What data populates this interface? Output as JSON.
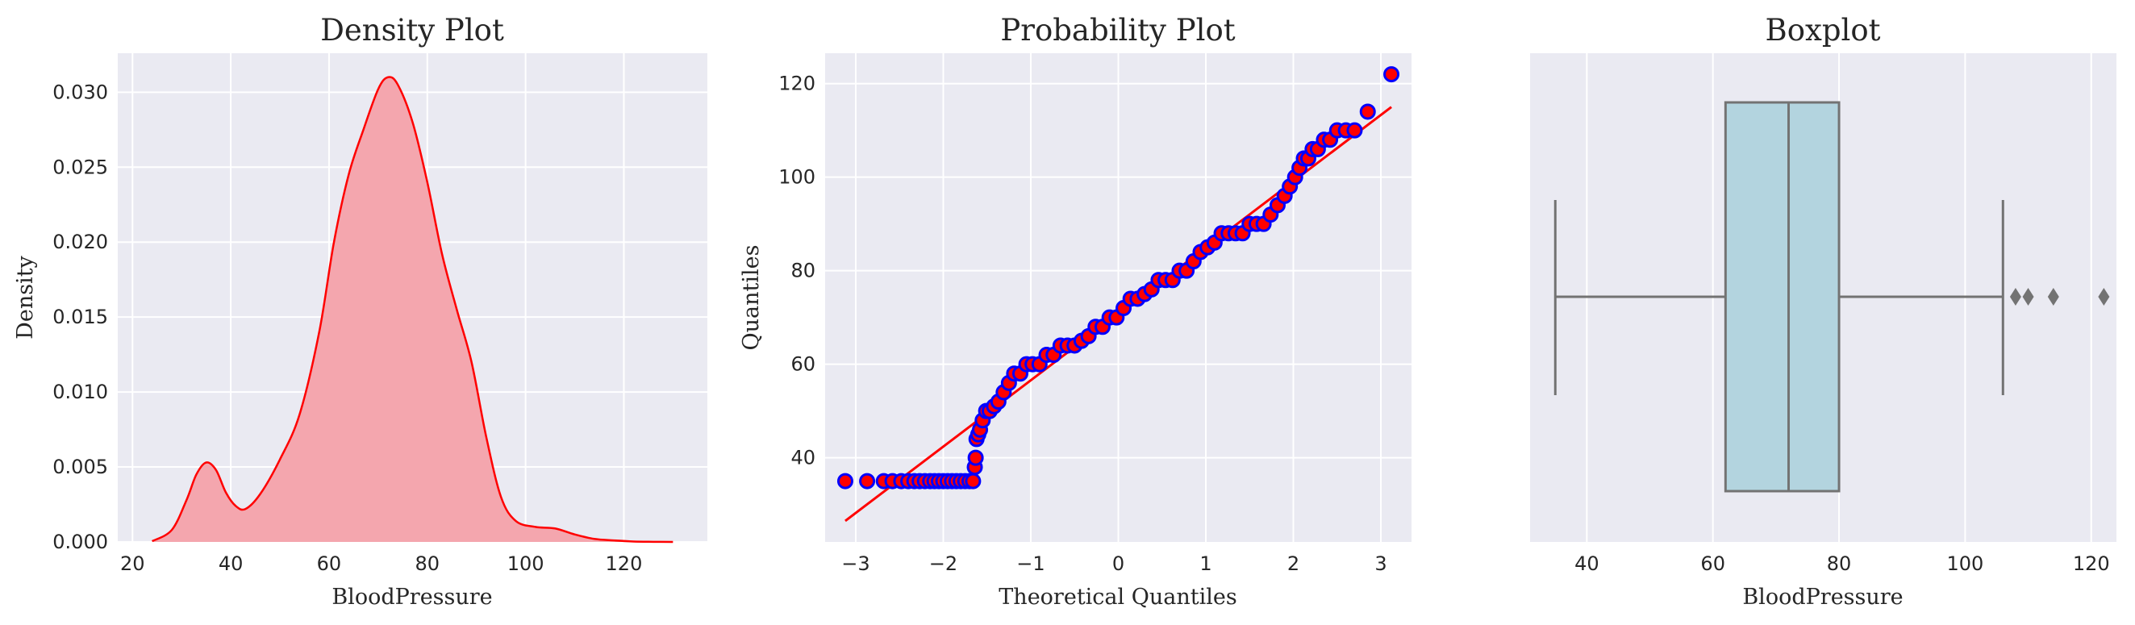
{
  "chart_data": [
    {
      "type": "area",
      "title": "Density Plot",
      "xlabel": "BloodPressure",
      "ylabel": "Density",
      "xlim": [
        17,
        137
      ],
      "ylim": [
        0,
        0.0326
      ],
      "xticks": [
        20,
        40,
        60,
        80,
        100,
        120
      ],
      "yticks": [
        0.0,
        0.005,
        0.01,
        0.015,
        0.02,
        0.025,
        0.03
      ],
      "ytick_labels": [
        "0.000",
        "0.005",
        "0.010",
        "0.015",
        "0.020",
        "0.025",
        "0.030"
      ],
      "grid": true,
      "colors": {
        "line": "#ff0000",
        "fill": "#f4a6ae"
      },
      "x": [
        24,
        28,
        31,
        33,
        35,
        37,
        39,
        41,
        43,
        46,
        50,
        54,
        58,
        61,
        64,
        67,
        70,
        72,
        74,
        77,
        80,
        83,
        86,
        89,
        92,
        95,
        98,
        102,
        106,
        110,
        114,
        118,
        122,
        126,
        130
      ],
      "y": [
        5e-05,
        0.0008,
        0.0028,
        0.0045,
        0.0053,
        0.0048,
        0.0033,
        0.0024,
        0.0022,
        0.0032,
        0.0055,
        0.0085,
        0.014,
        0.02,
        0.0245,
        0.0275,
        0.0302,
        0.031,
        0.0305,
        0.028,
        0.024,
        0.0192,
        0.0155,
        0.012,
        0.007,
        0.003,
        0.0014,
        0.001,
        0.0009,
        0.0005,
        0.0002,
        0.0001,
        3e-05,
        1e-05,
        0.0
      ]
    },
    {
      "type": "scatter",
      "title": "Probability Plot",
      "xlabel": "Theoretical Quantiles",
      "ylabel": "Quantiles",
      "xlim": [
        -3.35,
        3.35
      ],
      "ylim": [
        22,
        126.5
      ],
      "xticks": [
        -3,
        -2,
        -1,
        0,
        1,
        2,
        3
      ],
      "xtick_labels": [
        "−3",
        "−2",
        "−1",
        "0",
        "1",
        "2",
        "3"
      ],
      "yticks": [
        40,
        60,
        80,
        100,
        120
      ],
      "grid": true,
      "colors": {
        "marker_edge": "#0000ff",
        "marker_face": "#ff0000",
        "fit_line": "#ff0000"
      },
      "fit_line": {
        "x": [
          -3.12,
          3.12
        ],
        "y": [
          26.5,
          115
        ]
      },
      "x": [
        -3.12,
        -2.87,
        -2.68,
        -2.58,
        -2.48,
        -2.4,
        -2.33,
        -2.27,
        -2.21,
        -2.15,
        -2.1,
        -2.05,
        -2.0,
        -1.95,
        -1.9,
        -1.85,
        -1.8,
        -1.75,
        -1.7,
        -1.66,
        -1.64,
        -1.63,
        -1.62,
        -1.6,
        -1.58,
        -1.55,
        -1.51,
        -1.47,
        -1.42,
        -1.37,
        -1.31,
        -1.25,
        -1.19,
        -1.12,
        -1.05,
        -0.98,
        -0.9,
        -0.82,
        -0.74,
        -0.66,
        -0.58,
        -0.5,
        -0.42,
        -0.34,
        -0.26,
        -0.18,
        -0.1,
        -0.02,
        0.06,
        0.14,
        0.22,
        0.3,
        0.38,
        0.46,
        0.54,
        0.62,
        0.7,
        0.78,
        0.86,
        0.94,
        1.02,
        1.1,
        1.18,
        1.26,
        1.34,
        1.42,
        1.5,
        1.58,
        1.66,
        1.74,
        1.82,
        1.9,
        1.96,
        2.02,
        2.07,
        2.12,
        2.17,
        2.22,
        2.28,
        2.35,
        2.42,
        2.5,
        2.6,
        2.7,
        2.85,
        3.12
      ],
      "y": [
        35,
        35,
        35,
        35,
        35,
        35,
        35,
        35,
        35,
        35,
        35,
        35,
        35,
        35,
        35,
        35,
        35,
        35,
        35,
        35,
        38,
        40,
        44,
        45,
        46,
        48,
        50,
        50,
        51,
        52,
        54,
        56,
        58,
        58,
        60,
        60,
        60,
        62,
        62,
        64,
        64,
        64,
        65,
        66,
        68,
        68,
        70,
        70,
        72,
        74,
        74,
        75,
        76,
        78,
        78,
        78,
        80,
        80,
        82,
        84,
        85,
        86,
        88,
        88,
        88,
        88,
        90,
        90,
        90,
        92,
        94,
        96,
        98,
        100,
        102,
        104,
        104,
        106,
        106,
        108,
        108,
        110,
        110,
        110,
        114,
        122
      ]
    },
    {
      "type": "boxplot",
      "title": "Boxplot",
      "xlabel": "BloodPressure",
      "xlim": [
        31,
        124
      ],
      "xticks": [
        40,
        60,
        80,
        100,
        120
      ],
      "grid": true,
      "colors": {
        "box_fill": "#b3d4df",
        "box_edge": "#737373"
      },
      "whisker_low": 35,
      "q1": 62,
      "median": 72,
      "q3": 80,
      "whisker_high": 106,
      "outliers": [
        108,
        110,
        114,
        122
      ]
    }
  ]
}
